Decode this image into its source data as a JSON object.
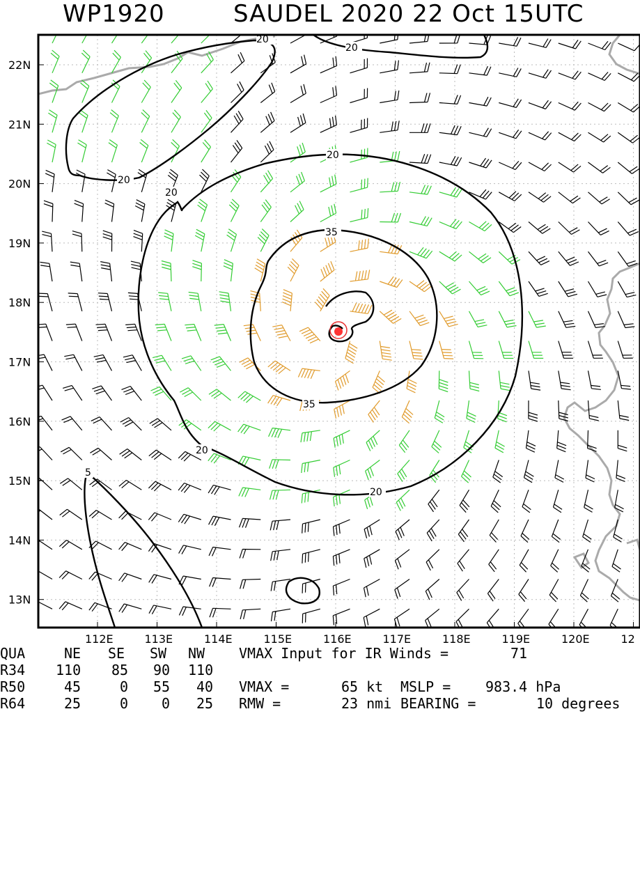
{
  "title": {
    "storm_id": "WP1920",
    "storm_info": "SAUDEL 2020 22 Oct 15UTC"
  },
  "map": {
    "lat_labels": [
      "22N",
      "21N",
      "20N",
      "19N",
      "18N",
      "17N",
      "16N",
      "15N",
      "14N",
      "13N"
    ],
    "lon_labels": [
      "112E",
      "113E",
      "114E",
      "115E",
      "116E",
      "117E",
      "118E",
      "119E",
      "120E",
      "12"
    ],
    "storm_center": {
      "lon": 116.05,
      "lat": 17.48
    },
    "contours": [
      {
        "label": "20",
        "level": 20,
        "where": "outer ring around storm"
      },
      {
        "label": "35",
        "level": 35,
        "where": "inner ring around storm"
      },
      {
        "label": "20",
        "level": 20,
        "where": "northwest lobe"
      },
      {
        "label": "20",
        "level": 20,
        "where": "top edge"
      },
      {
        "label": "5",
        "level": 5,
        "where": "southwest"
      }
    ],
    "colors": {
      "barb_low": "#000000",
      "barb_34": "#33cc33",
      "barb_50": "#e09a2a",
      "barb_64": "#e83030",
      "center": "#ff3333",
      "land": "#aaaaaa"
    }
  },
  "stats": {
    "header": {
      "qua": "QUA",
      "ne": "NE",
      "se": "SE",
      "sw": "SW",
      "nw": "NW",
      "text": "VMAX Input for IR Winds =",
      "value": "71"
    },
    "r34": {
      "label": "R34",
      "ne": "110",
      "se": "85",
      "sw": "90",
      "nw": "110"
    },
    "r50": {
      "label": "R50",
      "ne": "45",
      "se": "0",
      "sw": "55",
      "nw": "40",
      "text": "VMAX =",
      "vmax": "65 kt",
      "mslp_label": "MSLP =",
      "mslp": "983.4 hPa"
    },
    "r64": {
      "label": "R64",
      "ne": "25",
      "se": "0",
      "sw": "0",
      "nw": "25",
      "text": "RMW =",
      "rmw": "23 nmi",
      "bearing_label": "BEARING =",
      "bearing": "10 degrees"
    }
  }
}
